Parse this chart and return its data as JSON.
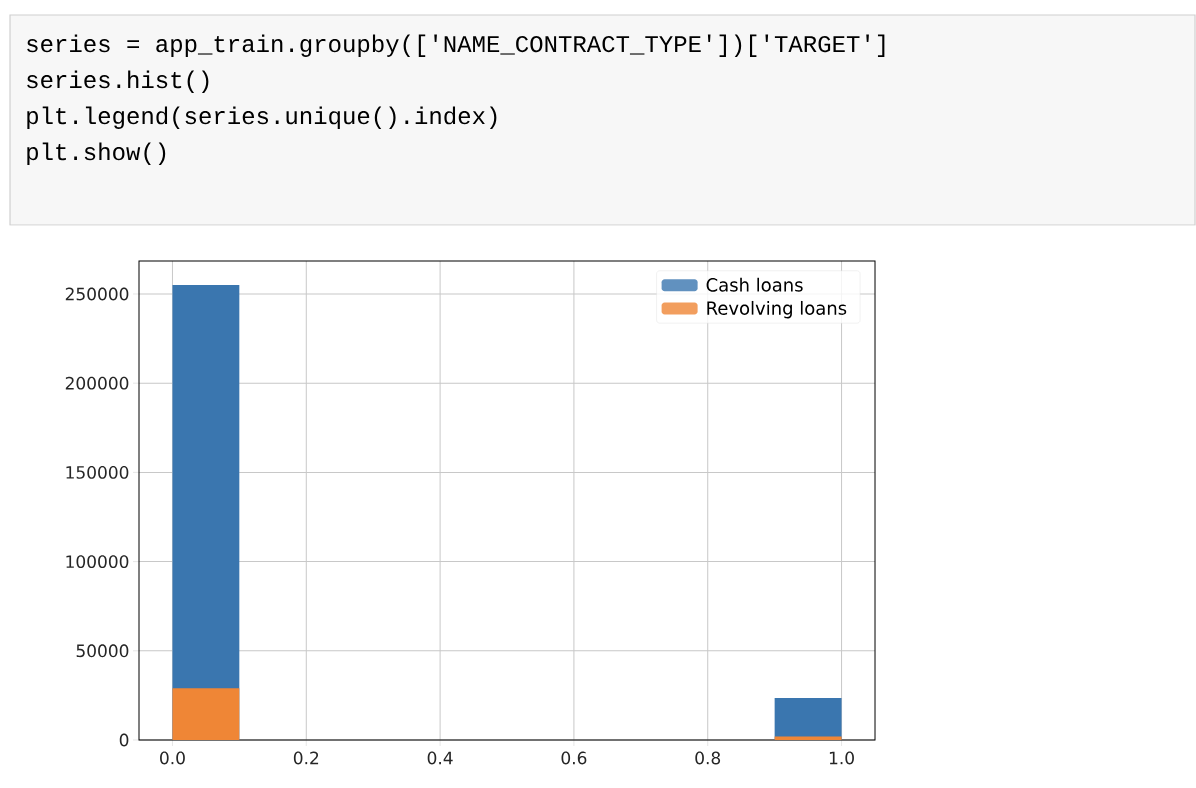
{
  "chart_data": {
    "type": "histogram",
    "bins": [
      0.0,
      0.1,
      0.2,
      0.3,
      0.4,
      0.5,
      0.6,
      0.7,
      0.8,
      0.9,
      1.0
    ],
    "series": [
      {
        "name": "Cash loans",
        "color": "#3a76af",
        "values": [
          255000,
          0,
          0,
          0,
          0,
          0,
          0,
          0,
          0,
          23500
        ]
      },
      {
        "name": "Revolving loans",
        "color": "#ef8636",
        "values": [
          29000,
          0,
          0,
          0,
          0,
          0,
          0,
          0,
          0,
          2000
        ]
      }
    ],
    "xlim": [
      -0.05,
      1.05
    ],
    "ylim": [
      0,
      268500
    ],
    "xticks": [
      {
        "value": 0,
        "label": "0.0"
      },
      {
        "value": 0.2,
        "label": "0.2"
      },
      {
        "value": 0.4,
        "label": "0.4"
      },
      {
        "value": 0.6,
        "label": "0.6"
      },
      {
        "value": 0.8,
        "label": "0.8"
      },
      {
        "value": 1.0,
        "label": "1.0"
      }
    ],
    "yticks": [
      0,
      50000,
      100000,
      150000,
      200000,
      250000
    ],
    "grid": true,
    "legend": "top right",
    "annotations": [
      "series = app_train.groupby(['NAME_CONTRACT_TYPE'])['TARGET']",
      "series.hist()",
      "plt.legend(series.unique().index)",
      "plt.show()"
    ]
  }
}
